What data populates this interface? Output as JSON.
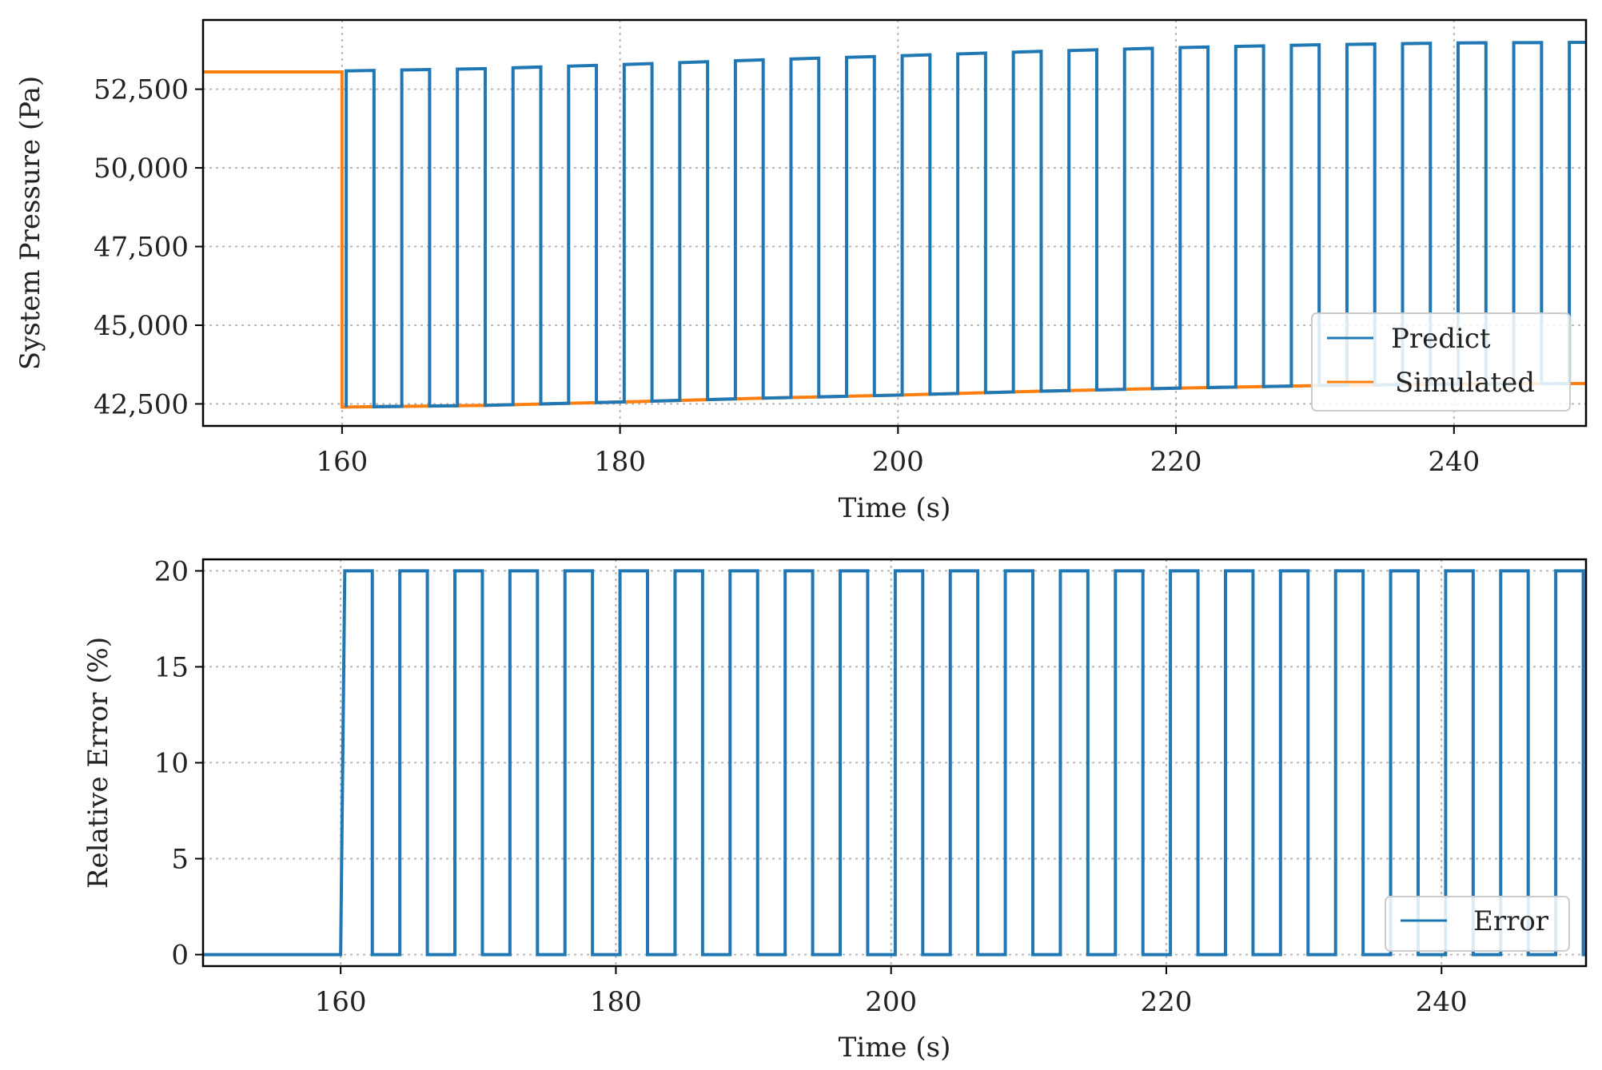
{
  "colors": {
    "predict": "#1f77b4",
    "simulated": "#ff7f0e",
    "error": "#1f77b4",
    "grid": "#b0b0b0",
    "axes": "#000000"
  },
  "chart_data": [
    {
      "type": "line",
      "xlabel": "Time (s)",
      "ylabel": "System Pressure (Pa)",
      "xlim": [
        150,
        249.5
      ],
      "ylim": [
        41800,
        54700
      ],
      "x_ticks": [
        160,
        180,
        200,
        220,
        240
      ],
      "x_tick_labels": [
        "160",
        "180",
        "200",
        "220",
        "240"
      ],
      "y_ticks": [
        42500,
        45000,
        47500,
        50000,
        52500
      ],
      "y_tick_labels": [
        "42,500",
        "45,000",
        "47,500",
        "50,000",
        "52,500"
      ],
      "grid": true,
      "legend": {
        "position": "lower-right",
        "entries": [
          "Predict",
          "Simulated"
        ]
      },
      "series": [
        {
          "name": "Simulated",
          "color": "#ff7f0e",
          "x": [
            150,
            160,
            160,
            170,
            180,
            190,
            200,
            210,
            220,
            230,
            240,
            249.5
          ],
          "y": [
            53050,
            53050,
            42400,
            42450,
            42560,
            42680,
            42780,
            42900,
            43000,
            43080,
            43130,
            43150
          ]
        },
        {
          "name": "Predict",
          "color": "#1f77b4",
          "pattern": "oscillates between the lower and upper envelope every ~2 s from t = 160.3 s",
          "switch_start": 160.3,
          "switch_period": 2.0,
          "switch_end": 249.5,
          "lower_envelope": {
            "x": [
              160,
              170,
              180,
              190,
              200,
              210,
              220,
              230,
              240,
              249.5
            ],
            "y": [
              42400,
              42450,
              42560,
              42680,
              42780,
              42900,
              43000,
              43080,
              43130,
              43150
            ]
          },
          "upper_envelope": {
            "x": [
              160,
              170,
              180,
              190,
              200,
              210,
              220,
              230,
              240,
              249.5
            ],
            "y": [
              53080,
              53150,
              53280,
              53430,
              53560,
              53700,
              53820,
              53910,
              53970,
              53990
            ]
          }
        }
      ]
    },
    {
      "type": "line",
      "xlabel": "Time (s)",
      "ylabel": "Relative Error (%)",
      "xlim": [
        150,
        250.5
      ],
      "ylim": [
        -0.6,
        20.6
      ],
      "x_ticks": [
        160,
        180,
        200,
        220,
        240
      ],
      "x_tick_labels": [
        "160",
        "180",
        "200",
        "220",
        "240"
      ],
      "y_ticks": [
        0,
        5,
        10,
        15,
        20
      ],
      "y_tick_labels": [
        "0",
        "5",
        "10",
        "15",
        "20"
      ],
      "grid": true,
      "legend": {
        "position": "lower-right",
        "entries": [
          "Error"
        ]
      },
      "series": [
        {
          "name": "Error",
          "color": "#1f77b4",
          "pattern": "0 before t = 160 s, then switches between 20 and 0 every ~2 s",
          "baseline_x": [
            150,
            160
          ],
          "baseline_y": [
            0,
            0
          ],
          "switch_start": 160.3,
          "switch_period": 2.0,
          "switch_end": 250.5,
          "high_value": 20,
          "low_value": 0
        }
      ]
    }
  ]
}
